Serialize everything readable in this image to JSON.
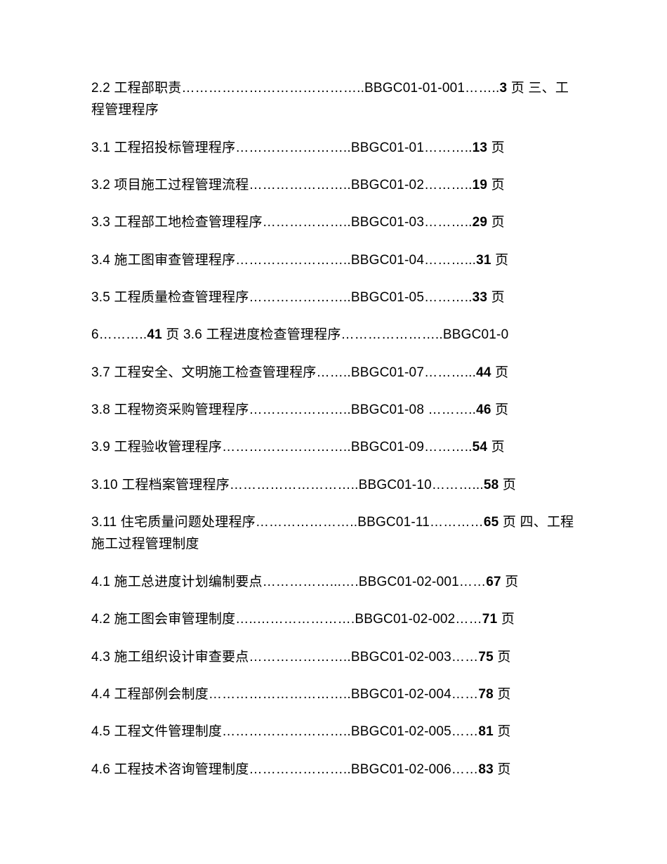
{
  "entries": [
    {
      "prefix": "2.2 工程部职责…………………………………..BBGC01-01-001……..",
      "pageNum": "3",
      "suffix": " 页 三、工程管理程序"
    },
    {
      "prefix": "3.1 工程招投标管理程序……………………..BBGC01-01………..",
      "pageNum": "13",
      "suffix": " 页"
    },
    {
      "prefix": "3.2 项目施工过程管理流程…………………..BBGC01-02………..",
      "pageNum": "19",
      "suffix": " 页"
    },
    {
      "prefix": "3.3 工程部工地检查管理程序………………..BBGC01-03………..",
      "pageNum": "29",
      "suffix": " 页"
    },
    {
      "prefix": "3.4 施工图审查管理程序……………………..BBGC01-04………...",
      "pageNum": "31",
      "suffix": " 页"
    },
    {
      "prefix": "3.5 工程质量检查管理程序…………………..BBGC01-05………..",
      "pageNum": "33",
      "suffix": " 页"
    },
    {
      "prefix": "6………..",
      "pageNum": "41",
      "suffix": " 页 3.6 工程进度检查管理程序…………………..BBGC01-0"
    },
    {
      "prefix": "3.7 工程安全、文明施工检查管理程序……..BBGC01-07………...",
      "pageNum": "44",
      "suffix": " 页"
    },
    {
      "prefix": "3.8 工程物资采购管理程序…………………..BBGC01-08 ………..",
      "pageNum": "46",
      "suffix": " 页"
    },
    {
      "prefix": "3.9 工程验收管理程序………………………..BBGC01-09………..",
      "pageNum": "54",
      "suffix": " 页"
    },
    {
      "prefix": "3.10 工程档案管理程序………………………..BBGC01-10………...",
      "pageNum": "58",
      "suffix": " 页"
    },
    {
      "prefix": "3.11 住宅质量问题处理程序…………………..BBGC01-11…………",
      "pageNum": "65",
      "suffix": " 页 四、工程施工过程管理制度"
    },
    {
      "prefix": "4.1 施工总进度计划编制要点……………...….BBGC01-02-001……",
      "pageNum": "67",
      "suffix": " 页"
    },
    {
      "prefix": "4.2 施工图会审管理制度…..………………….BBGC01-02-002……",
      "pageNum": "71",
      "suffix": " 页"
    },
    {
      "prefix": "4.3 施工组织设计审查要点…………………..BBGC01-02-003……",
      "pageNum": "75",
      "suffix": " 页"
    },
    {
      "prefix": "4.4 工程部例会制度…………………………..BBGC01-02-004……",
      "pageNum": "78",
      "suffix": " 页"
    },
    {
      "prefix": "4.5 工程文件管理制度………………………..BBGC01-02-005……",
      "pageNum": "81",
      "suffix": " 页"
    },
    {
      "prefix": "4.6 工程技术咨询管理制度…………………..BBGC01-02-006……",
      "pageNum": "83",
      "suffix": " 页"
    }
  ]
}
